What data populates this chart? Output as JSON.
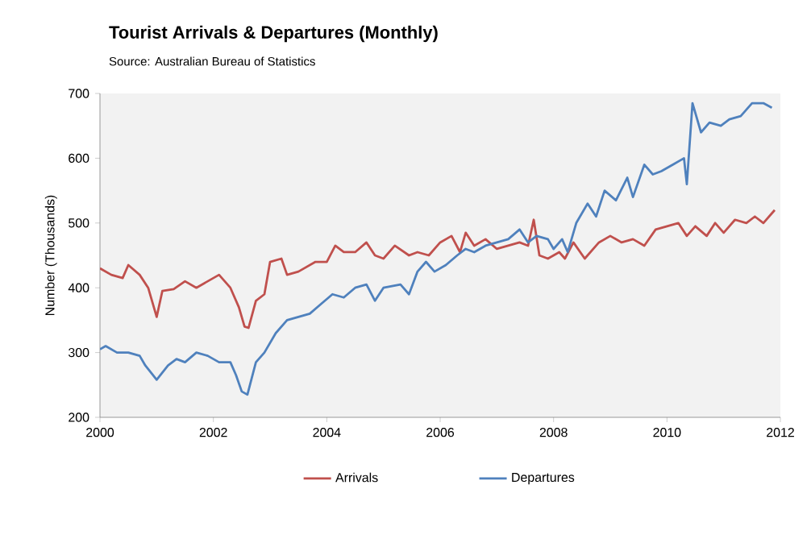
{
  "chart_data": {
    "type": "line",
    "title": "Tourist Arrivals & Departures (Monthly)",
    "annotations": [
      "Source: Australian Bureau of Statistics"
    ],
    "ylabel": "Number (Thousands)",
    "xlim": [
      2000,
      2012
    ],
    "xticks": [
      2000,
      2002,
      2004,
      2006,
      2008,
      2010,
      2012
    ],
    "ylim": [
      200,
      700
    ],
    "yticks": [
      200,
      300,
      400,
      500,
      600,
      700
    ],
    "grid": false,
    "legend": "bottom",
    "marker": "none",
    "line_style": "solid",
    "series": [
      {
        "name": "Arrivals",
        "color": "#c0504d",
        "x": [
          2000,
          2000.2,
          2000.4,
          2000.5,
          2000.7,
          2000.85,
          2001.0,
          2001.1,
          2001.3,
          2001.5,
          2001.7,
          2001.9,
          2002.1,
          2002.3,
          2002.45,
          2002.55,
          2002.62,
          2002.75,
          2002.9,
          2003.0,
          2003.2,
          2003.3,
          2003.5,
          2003.8,
          2004.0,
          2004.15,
          2004.3,
          2004.5,
          2004.7,
          2004.85,
          2005.0,
          2005.2,
          2005.45,
          2005.6,
          2005.8,
          2006.0,
          2006.2,
          2006.35,
          2006.45,
          2006.6,
          2006.8,
          2007.0,
          2007.2,
          2007.4,
          2007.55,
          2007.65,
          2007.75,
          2007.9,
          2008.1,
          2008.2,
          2008.35,
          2008.55,
          2008.8,
          2009.0,
          2009.2,
          2009.4,
          2009.6,
          2009.8,
          2010.0,
          2010.2,
          2010.35,
          2010.5,
          2010.7,
          2010.85,
          2011.0,
          2011.2,
          2011.4,
          2011.55,
          2011.7,
          2011.85,
          2011.9
        ],
        "values": [
          430,
          420,
          415,
          435,
          420,
          400,
          355,
          395,
          398,
          410,
          400,
          410,
          420,
          400,
          370,
          340,
          338,
          380,
          390,
          440,
          445,
          420,
          425,
          440,
          440,
          465,
          455,
          455,
          470,
          450,
          445,
          465,
          450,
          455,
          450,
          470,
          480,
          455,
          485,
          465,
          475,
          460,
          465,
          470,
          465,
          505,
          450,
          445,
          455,
          445,
          470,
          445,
          470,
          480,
          470,
          475,
          465,
          490,
          495,
          500,
          480,
          495,
          480,
          500,
          485,
          505,
          500,
          510,
          500,
          515,
          520
        ]
      },
      {
        "name": "Departures",
        "color": "#4f81bd",
        "x": [
          2000,
          2000.1,
          2000.3,
          2000.5,
          2000.7,
          2000.8,
          2001.0,
          2001.2,
          2001.35,
          2001.5,
          2001.7,
          2001.9,
          2002.1,
          2002.3,
          2002.4,
          2002.5,
          2002.6,
          2002.75,
          2002.9,
          2003.1,
          2003.3,
          2003.5,
          2003.7,
          2003.9,
          2004.1,
          2004.3,
          2004.5,
          2004.7,
          2004.85,
          2005.0,
          2005.3,
          2005.45,
          2005.6,
          2005.75,
          2005.9,
          2006.1,
          2006.3,
          2006.45,
          2006.6,
          2006.8,
          2007.0,
          2007.2,
          2007.4,
          2007.55,
          2007.7,
          2007.9,
          2008.0,
          2008.15,
          2008.25,
          2008.4,
          2008.6,
          2008.75,
          2008.9,
          2009.1,
          2009.3,
          2009.4,
          2009.6,
          2009.75,
          2009.9,
          2010.1,
          2010.3,
          2010.35,
          2010.45,
          2010.6,
          2010.75,
          2010.95,
          2011.1,
          2011.3,
          2011.5,
          2011.7,
          2011.85
        ],
        "values": [
          305,
          310,
          300,
          300,
          295,
          280,
          258,
          280,
          290,
          285,
          300,
          295,
          285,
          285,
          265,
          240,
          235,
          285,
          300,
          330,
          350,
          355,
          360,
          375,
          390,
          385,
          400,
          405,
          380,
          400,
          405,
          390,
          425,
          440,
          425,
          435,
          450,
          460,
          455,
          465,
          470,
          475,
          490,
          470,
          480,
          475,
          460,
          475,
          455,
          500,
          530,
          510,
          550,
          535,
          570,
          540,
          590,
          575,
          580,
          590,
          600,
          560,
          685,
          640,
          655,
          650,
          660,
          665,
          685,
          685,
          678
        ]
      }
    ]
  }
}
